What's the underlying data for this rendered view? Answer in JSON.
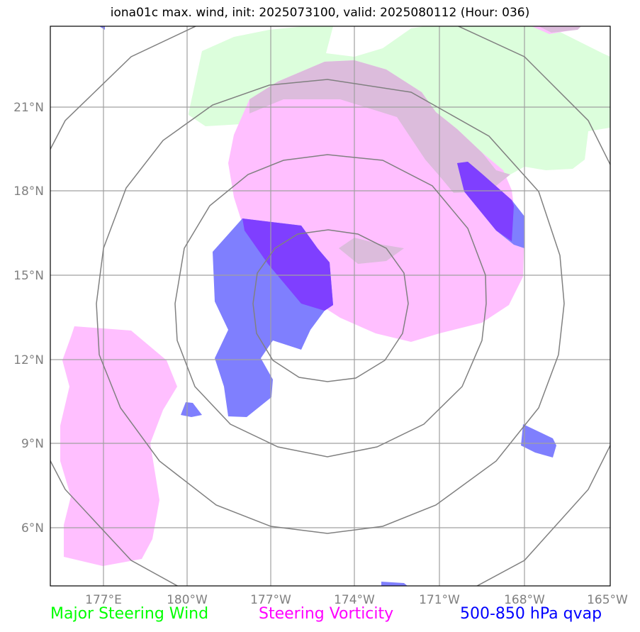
{
  "title": "iona01c max. wind, init: 2025073100, valid: 2025080112 (Hour: 036)",
  "map": {
    "lon_ticks": [
      "177°E",
      "180°W",
      "177°W",
      "174°W",
      "171°W",
      "168°W",
      "165°W"
    ],
    "lat_ticks": [
      "21°N",
      "18°N",
      "15°N",
      "12°N",
      "9°N",
      "6°N"
    ],
    "gridlines": true,
    "range_rings": 4
  },
  "legend": {
    "steering_wind": {
      "label": "Major Steering Wind",
      "color": "#00ff00"
    },
    "steering_vorticity": {
      "label": "Steering Vorticity",
      "color": "#ff00ff"
    },
    "qvap": {
      "label": "500-850 hPa qvap",
      "color": "#0000ff"
    }
  },
  "colors": {
    "wind_fill": "#dcfedc",
    "vorticity_fill": "#ffbfff",
    "qvap_fill": "#7f7ffe",
    "qvap_overlap": "#7f3fff",
    "wind_vort_overlap": "#dcbcdc",
    "grid": "#a0a0a0",
    "rings": "#808080"
  }
}
